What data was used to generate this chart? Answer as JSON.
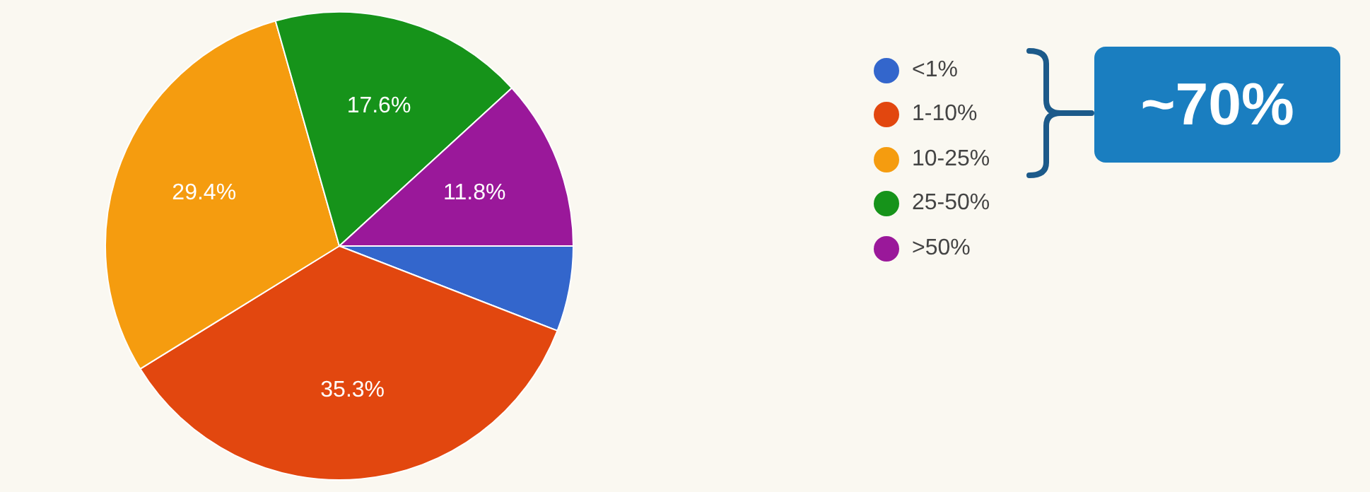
{
  "chart_data": {
    "type": "pie",
    "categories": [
      "<1%",
      "1-10%",
      "10-25%",
      "25-50%",
      ">50%"
    ],
    "values": [
      5.9,
      35.3,
      29.4,
      17.6,
      11.8
    ],
    "colors": [
      "#3366cc",
      "#e2470f",
      "#f59c0f",
      "#16931a",
      "#9a189a"
    ],
    "value_labels": [
      null,
      "35.3%",
      "29.4%",
      "17.6%",
      "11.8%"
    ],
    "legend": "right",
    "annotations": [
      "~70%"
    ]
  }
}
